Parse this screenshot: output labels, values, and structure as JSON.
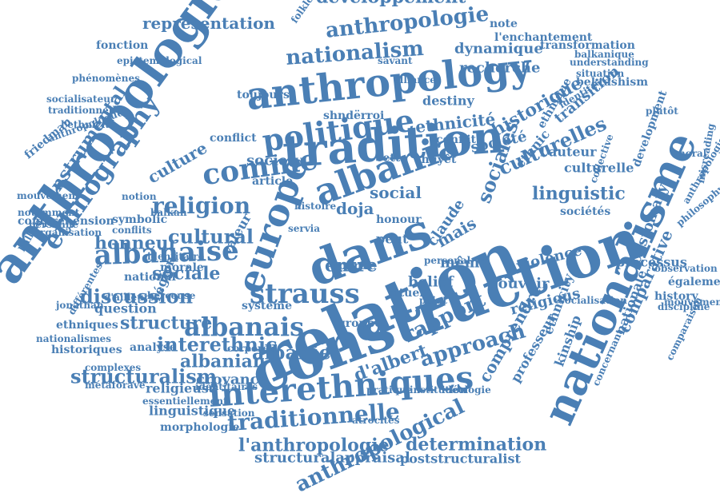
{
  "colors": {
    "word": "#4a7fb5",
    "background": "#ffffff"
  },
  "words": [
    "anthropologique",
    "relation",
    "construction",
    "nationalisme",
    "anthropology",
    "tradition",
    "albania",
    "europe",
    "dans",
    "albanaise",
    "interethniques",
    "politique",
    "nationalism",
    "anthropologie",
    "développement",
    "representation",
    "ethnography",
    "comme",
    "religion",
    "strauss",
    "albanais",
    "traditionnelle",
    "structuralism",
    "interethnic",
    "albanie",
    "l'anthropologie",
    "d'albert",
    "rapport",
    "approach",
    "anthropological",
    "determination",
    "structuralappraisal",
    "poststructuralist",
    "culturelles",
    "historique",
    "ethnicité",
    "sociales",
    "société",
    "sociale",
    "culture",
    "cultural",
    "honneur",
    "discussion",
    "structure",
    "albanian",
    "croyance",
    "religieuse",
    "linguistique",
    "morphologie",
    "linguistic",
    "processus",
    "customary",
    "nationale",
    "comparative",
    "ethnicity",
    "comprendre",
    "professeur",
    "kinship",
    "religious",
    "violence",
    "pouvoir",
    "belief",
    "même",
    "entre",
    "recherche",
    "dynamique",
    "destiny",
    "society",
    "conflict",
    "instrumental",
    "claude",
    "valeur",
    "doja",
    "social",
    "l'auteur",
    "transition",
    "identité",
    "ethnique",
    "ethnic",
    "sociétés",
    "culturelle",
    "collective",
    "development",
    "conflit",
    "cette",
    "thuyêt",
    "région",
    "article",
    "morale",
    "national",
    "question",
    "analyse",
    "ethniques",
    "historiques",
    "nationalismes",
    "jonathan",
    "d'ailleurs",
    "berceuse",
    "système",
    "groupe",
    "rituels",
    "point",
    "partie",
    "peut",
    "mais",
    "honour",
    "note",
    "l'enchantement",
    "folklorisation",
    "fonction",
    "epistemological",
    "phénomènes",
    "socialisateur",
    "traditionnelles",
    "l'ethnicité",
    "friedman",
    "anthropologues",
    "comprehension",
    "notamment",
    "personne",
    "organisation",
    "l'albanie",
    "différentes",
    "symbolic",
    "conflits",
    "balkan",
    "notion",
    "history",
    "également",
    "mouvements",
    "discipline",
    "observation",
    "concernant",
    "socialisation",
    "situation",
    "bektashism",
    "understanding",
    "transformation",
    "balkanique",
    "misreading",
    "anthropologisé",
    "philosophy",
    "comparaison",
    "métaforave",
    "essentiellement",
    "complexes",
    "identitaires",
    "sensation",
    "atrocités",
    "institution",
    "idéologie",
    "pratique",
    "identitaire",
    "toujours",
    "shndërroi",
    "alliance",
    "savant",
    "corporel",
    "personal",
    "histoire",
    "servia",
    "plutôt",
    "moral",
    "mouvement"
  ]
}
